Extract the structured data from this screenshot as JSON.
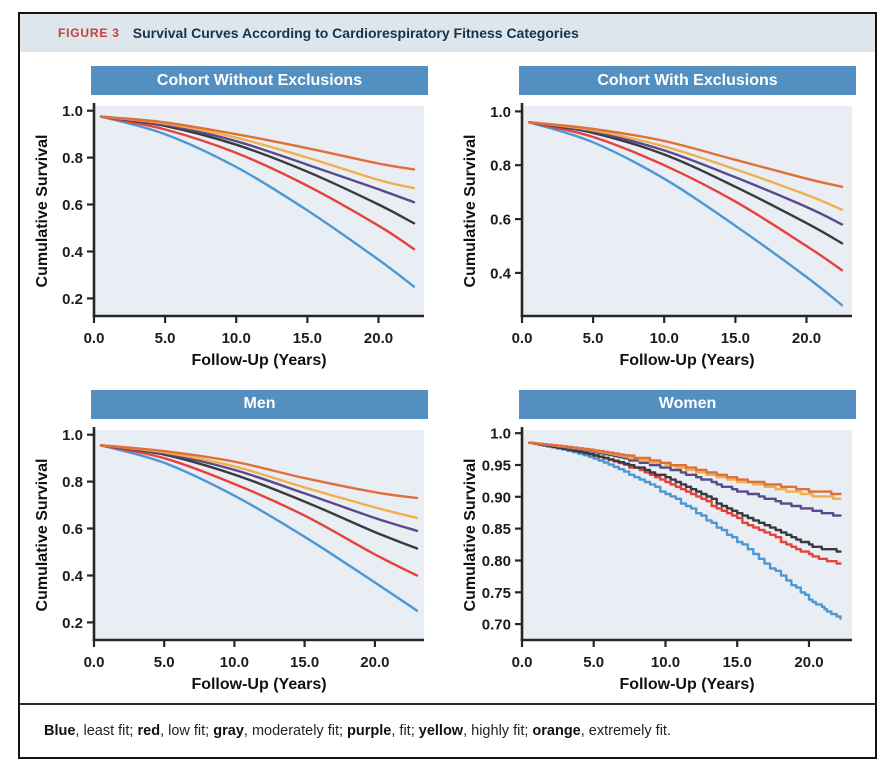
{
  "figure": {
    "label": "FIGURE 3",
    "title": "Survival Curves According to Cardiorespiratory Fitness Categories"
  },
  "caption_segments": [
    {
      "text": "Blue",
      "bold": true
    },
    {
      "text": ", least fit; ",
      "bold": false
    },
    {
      "text": "red",
      "bold": true
    },
    {
      "text": ", low fit; ",
      "bold": false
    },
    {
      "text": "gray",
      "bold": true
    },
    {
      "text": ", moderately fit; ",
      "bold": false
    },
    {
      "text": "purple",
      "bold": true
    },
    {
      "text": ", fit; ",
      "bold": false
    },
    {
      "text": "yellow",
      "bold": true
    },
    {
      "text": ", highly fit; ",
      "bold": false
    },
    {
      "text": "orange",
      "bold": true
    },
    {
      "text": ", extremely fit.",
      "bold": false
    }
  ],
  "colors": {
    "titlebar_bg": "#dce6ec",
    "figure_label": "#cf3a3c",
    "figure_title_text": "#16324f",
    "panel_header_bg": "#5390c1",
    "plot_bg": "#e8eef3",
    "axis": "#262626",
    "series": {
      "blue": "#4e97d3",
      "red": "#e6413c",
      "gray": "#3a3a3c",
      "purple": "#594a8c",
      "yellow": "#f1af4d",
      "orange": "#e06f3a"
    }
  },
  "chart_data": [
    {
      "type": "line",
      "title": "Cohort Without Exclusions",
      "xlabel": "Follow-Up (Years)",
      "ylabel": "Cumulative Survival",
      "xlim": [
        0,
        23.2
      ],
      "ylim": [
        0.125,
        1.02
      ],
      "x_ticks": [
        0,
        5,
        10,
        15,
        20
      ],
      "x_tick_labels": [
        "0.0",
        "5.0",
        "10.0",
        "15.0",
        "20.0"
      ],
      "y_ticks": [
        1.0,
        0.8,
        0.6,
        0.4,
        0.2
      ],
      "y_tick_labels": [
        "1.0",
        "0.8",
        "0.6",
        "0.4",
        "0.2"
      ],
      "x": [
        0.5,
        5,
        10,
        15,
        20,
        22.5
      ],
      "style": "smooth",
      "series": [
        {
          "color": "blue",
          "label": "least fit",
          "values": [
            0.975,
            0.9,
            0.76,
            0.575,
            0.365,
            0.25
          ]
        },
        {
          "color": "red",
          "label": "low fit",
          "values": [
            0.975,
            0.92,
            0.82,
            0.68,
            0.51,
            0.41
          ]
        },
        {
          "color": "gray",
          "label": "moderately fit",
          "values": [
            0.975,
            0.935,
            0.855,
            0.74,
            0.6,
            0.52
          ]
        },
        {
          "color": "purple",
          "label": "fit",
          "values": [
            0.975,
            0.94,
            0.87,
            0.77,
            0.665,
            0.61
          ]
        },
        {
          "color": "yellow",
          "label": "highly fit",
          "values": [
            0.975,
            0.945,
            0.885,
            0.8,
            0.705,
            0.67
          ]
        },
        {
          "color": "orange",
          "label": "extremely fit",
          "values": [
            0.975,
            0.95,
            0.9,
            0.84,
            0.775,
            0.75
          ]
        }
      ]
    },
    {
      "type": "line",
      "title": "Cohort With Exclusions",
      "xlabel": "Follow-Up (Years)",
      "ylabel": "Cumulative Survival",
      "xlim": [
        0,
        23.2
      ],
      "ylim": [
        0.24,
        1.02
      ],
      "x_ticks": [
        0,
        5,
        10,
        15,
        20
      ],
      "x_tick_labels": [
        "0.0",
        "5.0",
        "10.0",
        "15.0",
        "20.0"
      ],
      "y_ticks": [
        1.0,
        0.8,
        0.6,
        0.4
      ],
      "y_tick_labels": [
        "1.0",
        "0.8",
        "0.6",
        "0.4"
      ],
      "x": [
        0.5,
        5,
        10,
        15,
        20,
        22.5
      ],
      "style": "smooth",
      "series": [
        {
          "color": "blue",
          "label": "least fit",
          "values": [
            0.96,
            0.885,
            0.75,
            0.575,
            0.385,
            0.28
          ]
        },
        {
          "color": "red",
          "label": "low fit",
          "values": [
            0.96,
            0.905,
            0.8,
            0.665,
            0.5,
            0.41
          ]
        },
        {
          "color": "gray",
          "label": "moderately fit",
          "values": [
            0.96,
            0.92,
            0.84,
            0.72,
            0.585,
            0.51
          ]
        },
        {
          "color": "purple",
          "label": "fit",
          "values": [
            0.96,
            0.925,
            0.855,
            0.755,
            0.645,
            0.58
          ]
        },
        {
          "color": "yellow",
          "label": "highly fit",
          "values": [
            0.96,
            0.93,
            0.87,
            0.785,
            0.69,
            0.635
          ]
        },
        {
          "color": "orange",
          "label": "extremely fit",
          "values": [
            0.96,
            0.935,
            0.89,
            0.82,
            0.75,
            0.72
          ]
        }
      ]
    },
    {
      "type": "line",
      "title": "Men",
      "xlabel": "Follow-Up (Years)",
      "ylabel": "Cumulative Survival",
      "xlim": [
        0,
        23.5
      ],
      "ylim": [
        0.125,
        1.02
      ],
      "x_ticks": [
        0,
        5,
        10,
        15,
        20
      ],
      "x_tick_labels": [
        "0.0",
        "5.0",
        "10.0",
        "15.0",
        "20.0"
      ],
      "y_ticks": [
        1.0,
        0.8,
        0.6,
        0.4,
        0.2
      ],
      "y_tick_labels": [
        "1.0",
        "0.8",
        "0.6",
        "0.4",
        "0.2"
      ],
      "x": [
        0.5,
        5,
        10,
        15,
        20,
        23
      ],
      "style": "smooth",
      "series": [
        {
          "color": "blue",
          "label": "least fit",
          "values": [
            0.955,
            0.88,
            0.74,
            0.565,
            0.37,
            0.25
          ]
        },
        {
          "color": "red",
          "label": "low fit",
          "values": [
            0.955,
            0.9,
            0.79,
            0.655,
            0.49,
            0.4
          ]
        },
        {
          "color": "gray",
          "label": "moderately fit",
          "values": [
            0.955,
            0.915,
            0.83,
            0.715,
            0.585,
            0.515
          ]
        },
        {
          "color": "purple",
          "label": "fit",
          "values": [
            0.955,
            0.92,
            0.85,
            0.75,
            0.645,
            0.59
          ]
        },
        {
          "color": "yellow",
          "label": "highly fit",
          "values": [
            0.955,
            0.925,
            0.865,
            0.775,
            0.69,
            0.645
          ]
        },
        {
          "color": "orange",
          "label": "extremely fit",
          "values": [
            0.955,
            0.93,
            0.885,
            0.815,
            0.755,
            0.73
          ]
        }
      ]
    },
    {
      "type": "line",
      "title": "Women",
      "xlabel": "Follow-Up (Years)",
      "ylabel": "Cumulative Survival",
      "xlim": [
        0,
        23
      ],
      "ylim": [
        0.675,
        1.005
      ],
      "x_ticks": [
        0,
        5,
        10,
        15,
        20
      ],
      "x_tick_labels": [
        "0.0",
        "5.0",
        "10.0",
        "15.0",
        "20.0"
      ],
      "y_ticks": [
        1.0,
        0.95,
        0.9,
        0.85,
        0.8,
        0.75,
        0.7
      ],
      "y_tick_labels": [
        "1.0",
        "0.95",
        "0.90",
        "0.85",
        "0.80",
        "0.75",
        "0.70"
      ],
      "x": [
        0.5,
        5,
        10,
        15,
        20,
        22.2
      ],
      "style": "noisy",
      "series": [
        {
          "color": "blue",
          "label": "least fit",
          "values": [
            0.985,
            0.96,
            0.905,
            0.83,
            0.74,
            0.71
          ]
        },
        {
          "color": "red",
          "label": "low fit",
          "values": [
            0.985,
            0.965,
            0.925,
            0.865,
            0.81,
            0.795
          ]
        },
        {
          "color": "gray",
          "label": "moderately fit",
          "values": [
            0.985,
            0.965,
            0.93,
            0.875,
            0.825,
            0.815
          ]
        },
        {
          "color": "purple",
          "label": "fit",
          "values": [
            0.985,
            0.97,
            0.945,
            0.91,
            0.88,
            0.87
          ]
        },
        {
          "color": "yellow",
          "label": "highly fit",
          "values": [
            0.985,
            0.972,
            0.95,
            0.925,
            0.903,
            0.898
          ]
        },
        {
          "color": "orange",
          "label": "extremely fit",
          "values": [
            0.985,
            0.973,
            0.953,
            0.928,
            0.91,
            0.905
          ]
        }
      ]
    }
  ]
}
